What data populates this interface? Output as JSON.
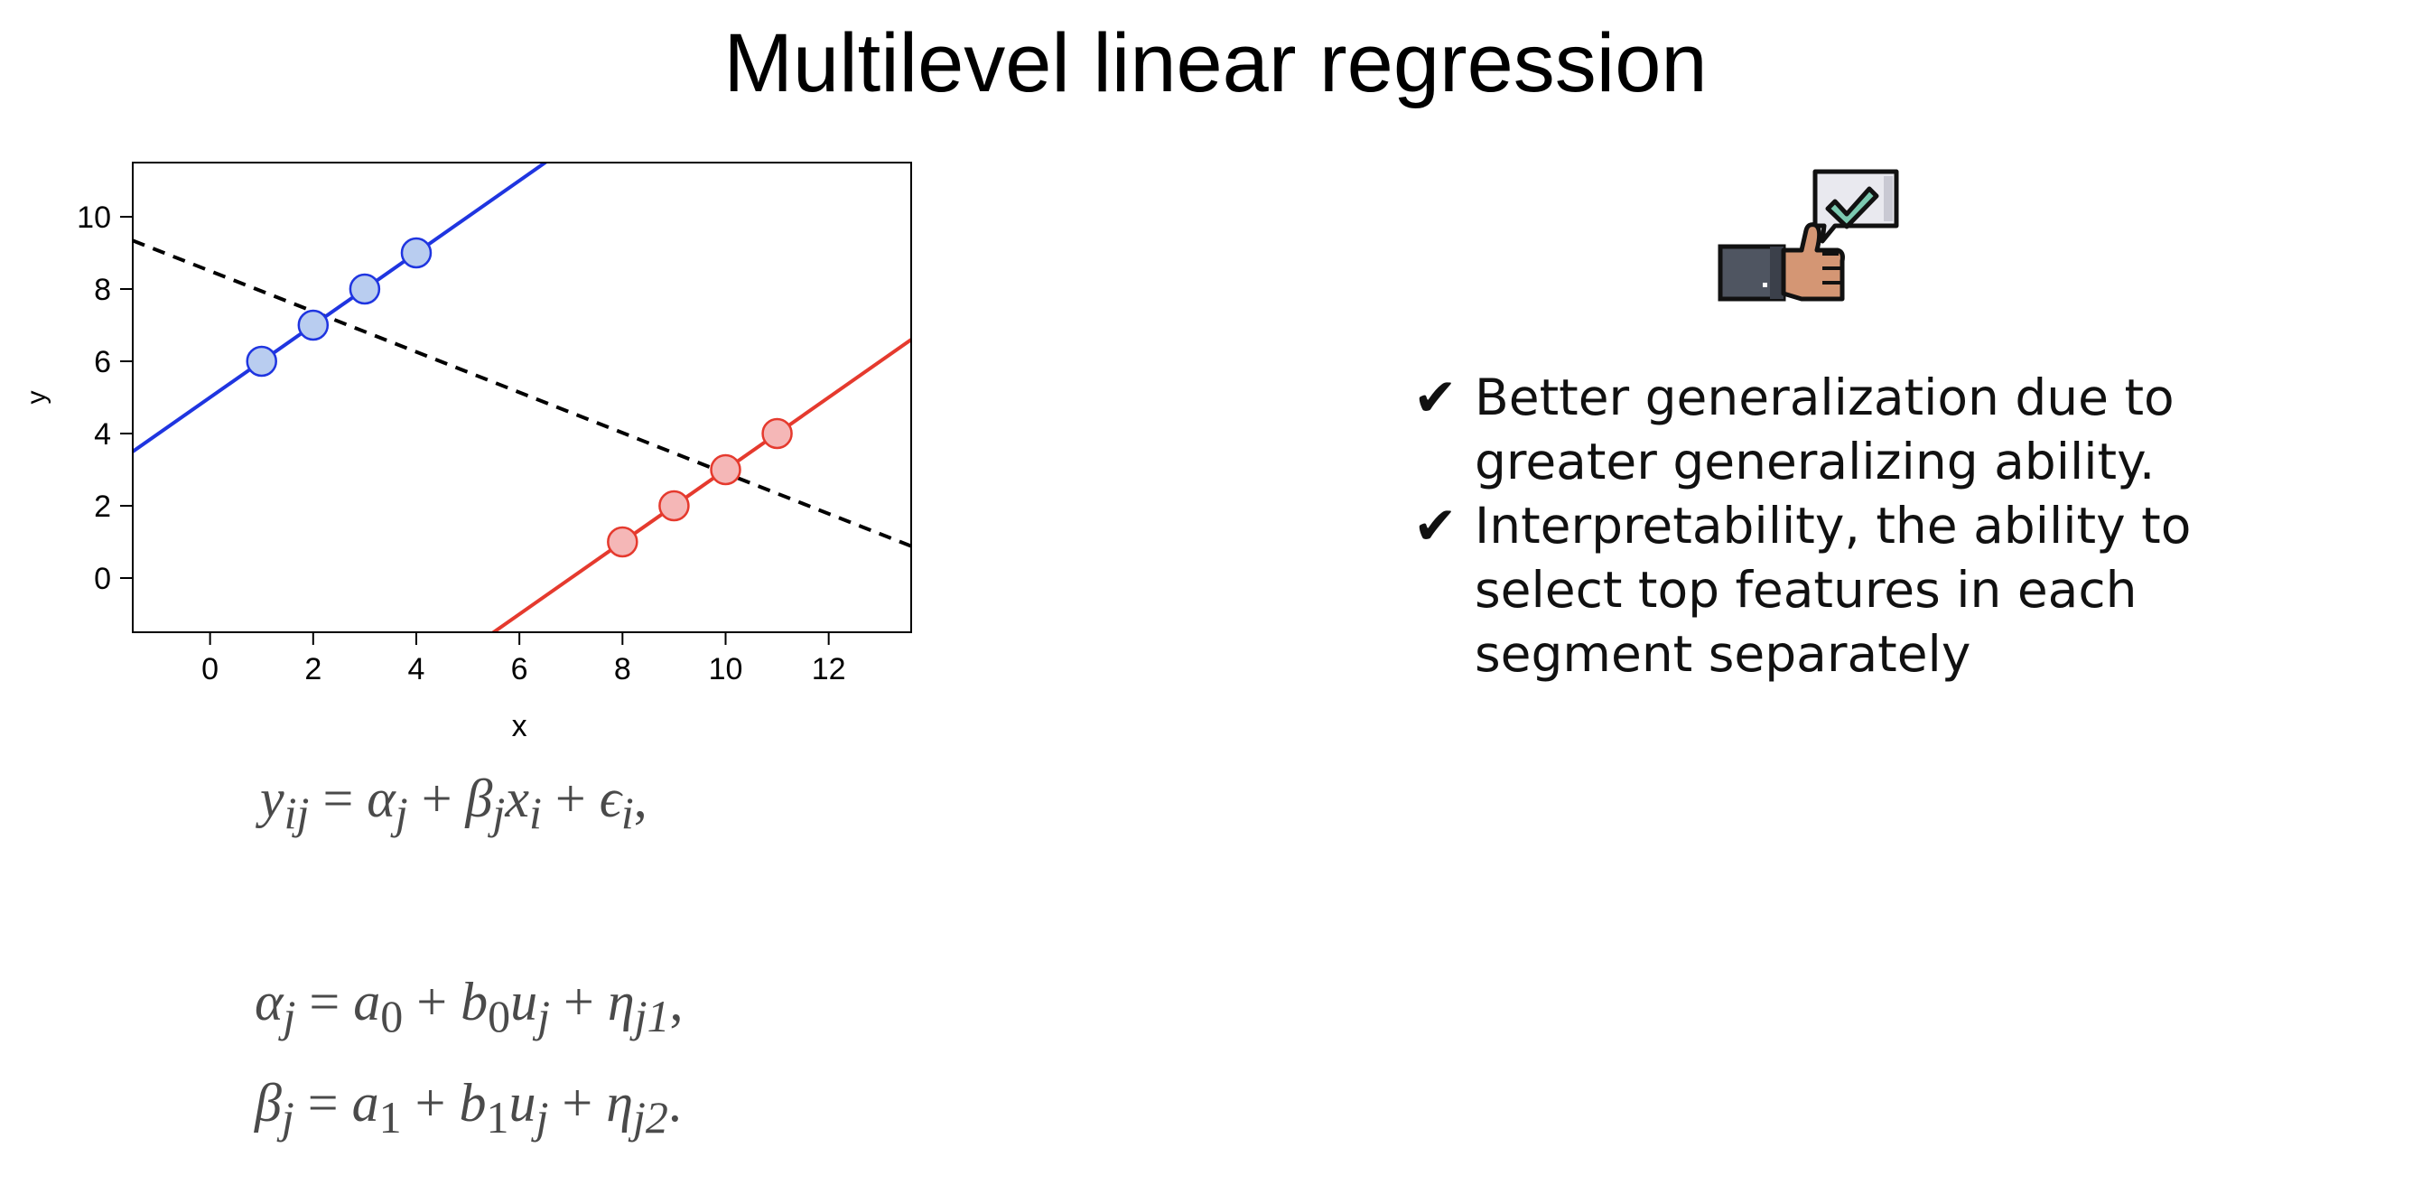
{
  "slide": {
    "title": "Multilevel linear regression"
  },
  "chart_data": {
    "type": "scatter",
    "xlabel": "x",
    "ylabel": "y",
    "xlim": [
      -1.5,
      13.6
    ],
    "ylim": [
      -1.5,
      11.5
    ],
    "xticks": [
      0,
      2,
      4,
      6,
      8,
      10,
      12
    ],
    "yticks": [
      0,
      2,
      4,
      6,
      8,
      10
    ],
    "grid": false,
    "series": [
      {
        "points": [
          [
            1,
            6
          ],
          [
            2,
            7
          ],
          [
            3,
            8
          ],
          [
            4,
            9
          ]
        ],
        "fit": {
          "intercept": 5,
          "slope": 1
        },
        "color": "#1f35e0",
        "fill": "#b9cdf0"
      },
      {
        "points": [
          [
            8,
            1
          ],
          [
            9,
            2
          ],
          [
            10,
            3
          ],
          [
            11,
            4
          ]
        ],
        "fit": {
          "intercept": -7,
          "slope": 1
        },
        "color": "#e53a2e",
        "fill": "#f5b7b7"
      }
    ],
    "pooled_fit": {
      "intercept": 8.5,
      "slope": -0.56,
      "style": "dashed",
      "color": "#000000"
    }
  },
  "equations": {
    "eq1": {
      "y": "y",
      "y_sub": "ij",
      "eq": "=",
      "alpha": "α",
      "alpha_sub": "j",
      "plus1": "+",
      "beta": "β",
      "beta_sub": "j",
      "x": "x",
      "x_sub": "i",
      "plus2": "+",
      "eps": "ϵ",
      "eps_sub": "i",
      "end": ","
    },
    "eq2": {
      "lhs": "α",
      "lhs_sub": "j",
      "eq": "=",
      "a": "a",
      "a_sub": "0",
      "plus1": "+",
      "b": "b",
      "b_sub": "0",
      "u": "u",
      "u_sub": "j",
      "plus2": "+",
      "eta": "η",
      "eta_sub": "j1",
      "end": ","
    },
    "eq3": {
      "lhs": "β",
      "lhs_sub": "j",
      "eq": "=",
      "a": "a",
      "a_sub": "1",
      "plus1": "+",
      "b": "b",
      "b_sub": "1",
      "u": "u",
      "u_sub": "j",
      "plus2": "+",
      "eta": "η",
      "eta_sub": "j2",
      "end": "."
    }
  },
  "icon": {
    "name": "thumbs-up-approval-icon"
  },
  "bullets": [
    {
      "mark": "✔",
      "text": "Better generalization due to greater generalizing ability."
    },
    {
      "mark": "✔",
      "text": "Interpretability, the ability to select top features in each segment separately"
    }
  ]
}
